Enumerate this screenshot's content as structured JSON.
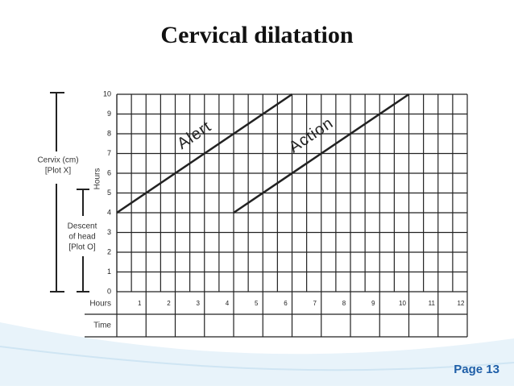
{
  "chart_data": {
    "type": "line",
    "title": "Cervical dilatation",
    "y_label": "Hours",
    "x_label": "Hours",
    "time_label": "Time",
    "cervix_label": [
      "Cervix (cm)",
      "[Plot X]"
    ],
    "descent_label": [
      "Descent",
      "of head",
      "[Plot O]"
    ],
    "series": [
      {
        "name": "Alert",
        "color": "#222222",
        "x": [
          0,
          6
        ],
        "values": [
          4,
          10
        ]
      },
      {
        "name": "Action",
        "color": "#222222",
        "x": [
          4,
          10
        ],
        "values": [
          4,
          10
        ]
      }
    ],
    "xlim": [
      0,
      12
    ],
    "ylim": [
      0,
      10
    ],
    "xticks": [
      1,
      2,
      3,
      4,
      5,
      6,
      7,
      8,
      9,
      10,
      11,
      12
    ],
    "yticks": [
      0,
      1,
      2,
      3,
      4,
      5,
      6,
      7,
      8,
      9,
      10
    ],
    "grid": true
  },
  "footer": {
    "page": "Page 13"
  }
}
